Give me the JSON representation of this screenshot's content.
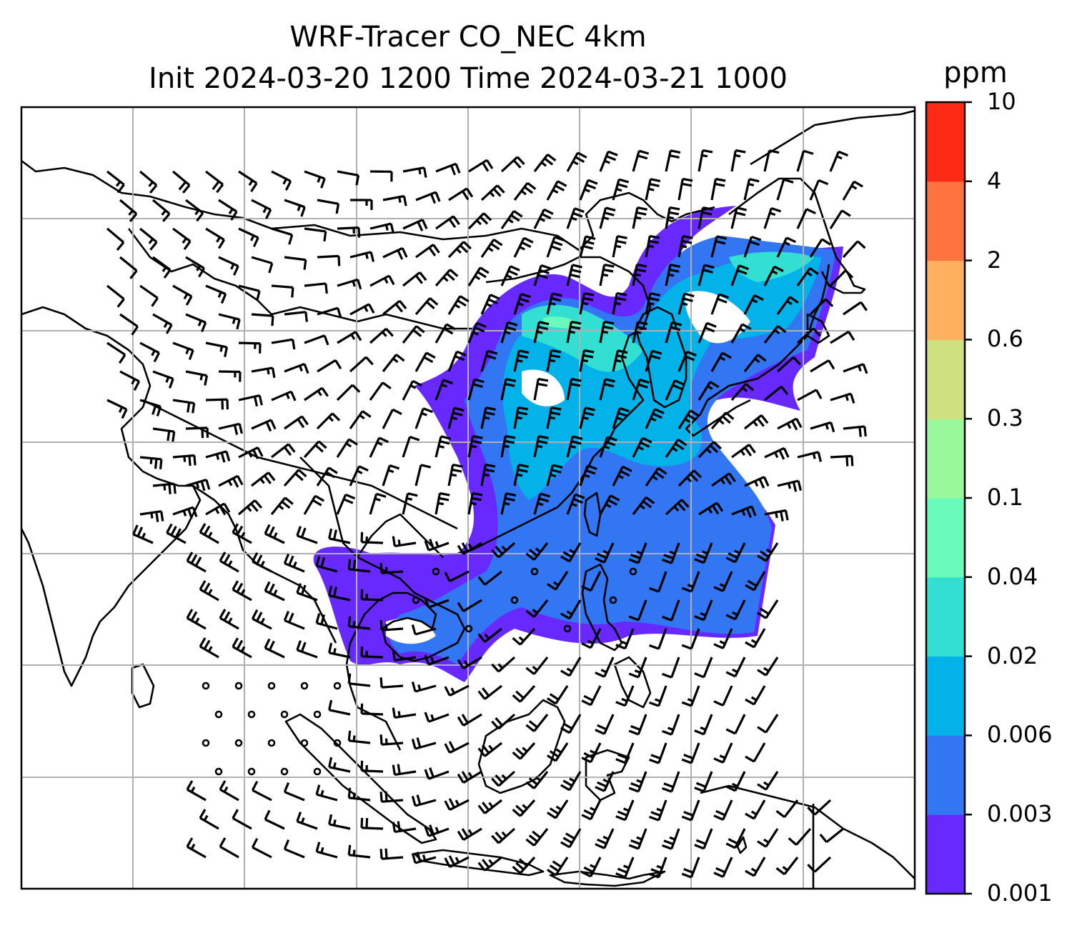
{
  "title": {
    "line1": "WRF-Tracer CO_NEC 4km",
    "line2": "Init 2024-03-20 1200 Time 2024-03-21 1000"
  },
  "colorbar": {
    "unit": "ppm",
    "levels": [
      "0.001",
      "0.003",
      "0.006",
      "0.02",
      "0.04",
      "0.1",
      "0.3",
      "0.6",
      "2",
      "4",
      "10"
    ],
    "colors": [
      "#6729ff",
      "#3276f4",
      "#02b2e9",
      "#32dfd2",
      "#68fbb9",
      "#99f99a",
      "#cee080",
      "#ffb160",
      "#ff7340",
      "#ff2a15"
    ]
  },
  "map": {
    "gridlines": true,
    "coastline_color": "#000000",
    "barb_color": "#000000"
  }
}
